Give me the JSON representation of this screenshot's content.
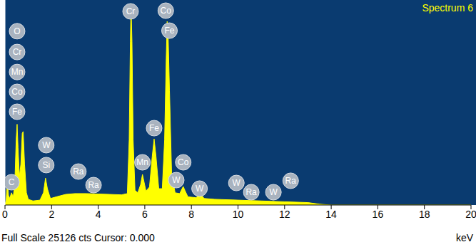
{
  "chart_data": {
    "type": "area",
    "title": "Spectrum 6",
    "x_label": "keV",
    "footer": "Full Scale 25126 cts Cursor: 0.000",
    "x": [
      0.0,
      0.05,
      0.1,
      0.15,
      0.2,
      0.28,
      0.35,
      0.42,
      0.48,
      0.52,
      0.56,
      0.62,
      0.68,
      0.74,
      0.78,
      0.84,
      0.92,
      1.0,
      1.2,
      1.5,
      1.65,
      1.74,
      1.82,
      1.95,
      2.2,
      2.6,
      3.0,
      3.5,
      4.0,
      4.5,
      5.0,
      5.25,
      5.33,
      5.38,
      5.41,
      5.45,
      5.5,
      5.58,
      5.7,
      5.82,
      5.9,
      5.97,
      6.05,
      6.2,
      6.32,
      6.4,
      6.48,
      6.6,
      6.75,
      6.85,
      6.92,
      6.96,
      7.0,
      7.06,
      7.15,
      7.3,
      7.5,
      7.6,
      7.65,
      7.72,
      7.85,
      8.2,
      8.4,
      8.55,
      9.0,
      10.0,
      11.0,
      12.0,
      13.0,
      13.5,
      14.0,
      20.0
    ],
    "values": [
      0,
      600,
      3000,
      1200,
      800,
      1500,
      1000,
      2500,
      8000,
      9900,
      7000,
      3500,
      5000,
      8800,
      9000,
      5000,
      1500,
      700,
      500,
      600,
      1500,
      3300,
      2000,
      800,
      1000,
      1300,
      1400,
      1400,
      1350,
      1300,
      1250,
      1400,
      8000,
      20000,
      24700,
      20000,
      8000,
      1800,
      1500,
      2500,
      3750,
      2800,
      1700,
      2200,
      6000,
      8100,
      6000,
      2000,
      2000,
      8000,
      18000,
      22500,
      21000,
      14000,
      4000,
      1500,
      1400,
      2000,
      2270,
      1800,
      1000,
      900,
      1300,
      800,
      700,
      600,
      500,
      400,
      300,
      100,
      0,
      0
    ],
    "color": "#ffff00",
    "xlim": [
      0,
      20
    ],
    "xticks": [
      0,
      2,
      4,
      6,
      8,
      10,
      12,
      14,
      16,
      18,
      20
    ],
    "ylim": [
      0,
      25126
    ],
    "tick_labels": "x",
    "annotations": [
      {
        "label": "O",
        "x": 0.52,
        "y": 21300
      },
      {
        "label": "Cr",
        "x": 0.52,
        "y": 18750
      },
      {
        "label": "Mn",
        "x": 0.52,
        "y": 16300
      },
      {
        "label": "Co",
        "x": 0.52,
        "y": 13870
      },
      {
        "label": "Fe",
        "x": 0.52,
        "y": 11430
      },
      {
        "label": "C",
        "x": 0.28,
        "y": 2790
      },
      {
        "label": "W",
        "x": 1.77,
        "y": 7330
      },
      {
        "label": "Si",
        "x": 1.77,
        "y": 4890
      },
      {
        "label": "Ra",
        "x": 3.15,
        "y": 4100
      },
      {
        "label": "Ra",
        "x": 3.8,
        "y": 2440
      },
      {
        "label": "Cr",
        "x": 5.39,
        "y": 23730
      },
      {
        "label": "Co",
        "x": 6.9,
        "y": 23820
      },
      {
        "label": "Fe",
        "x": 7.06,
        "y": 21370
      },
      {
        "label": "Fe",
        "x": 6.4,
        "y": 9420
      },
      {
        "label": "Mn",
        "x": 5.9,
        "y": 5230
      },
      {
        "label": "Co",
        "x": 7.65,
        "y": 5230
      },
      {
        "label": "W",
        "x": 7.35,
        "y": 3050
      },
      {
        "label": "W",
        "x": 8.35,
        "y": 2010
      },
      {
        "label": "W",
        "x": 9.93,
        "y": 2700
      },
      {
        "label": "Ra",
        "x": 10.57,
        "y": 1570
      },
      {
        "label": "W",
        "x": 11.52,
        "y": 1570
      },
      {
        "label": "Ra",
        "x": 12.26,
        "y": 2970
      }
    ]
  }
}
